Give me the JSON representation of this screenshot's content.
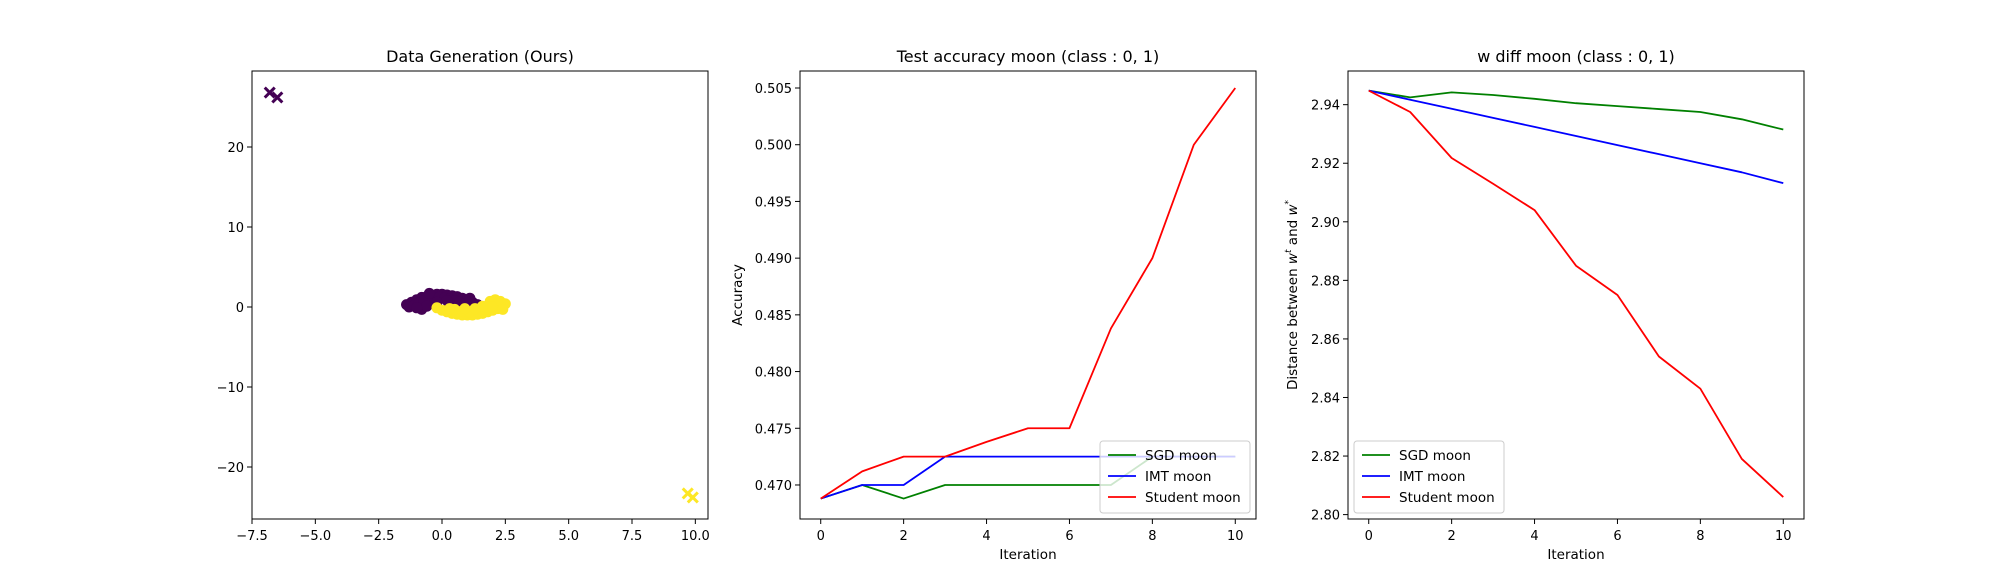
{
  "chart_data": [
    {
      "type": "scatter",
      "title": "Data Generation (Ours)",
      "xlabel": "",
      "ylabel": "",
      "xlim": [
        -7.5,
        10.5
      ],
      "ylim": [
        -26.5,
        29.5
      ],
      "xticks": [
        -7.5,
        -5.0,
        -2.5,
        0.0,
        2.5,
        5.0,
        7.5,
        10.0
      ],
      "xtick_labels": [
        "−7.5",
        "−5.0",
        "−2.5",
        "0.0",
        "2.5",
        "5.0",
        "7.5",
        "10.0"
      ],
      "yticks": [
        -20,
        -10,
        0,
        10,
        20
      ],
      "ytick_labels": [
        "−20",
        "−10",
        "0",
        "10",
        "20"
      ],
      "grid": false,
      "colors": {
        "class0": "#440154",
        "class1": "#fde725"
      },
      "series": [
        {
          "marker": "circle",
          "class": 0,
          "points": [
            [
              -1.4,
              0.3
            ],
            [
              -1.2,
              0.6
            ],
            [
              -1.0,
              0.9
            ],
            [
              -0.8,
              1.2
            ],
            [
              -0.6,
              1.3
            ],
            [
              -0.4,
              1.5
            ],
            [
              -0.2,
              1.6
            ],
            [
              0.0,
              1.6
            ],
            [
              0.2,
              1.5
            ],
            [
              0.4,
              1.4
            ],
            [
              0.6,
              1.3
            ],
            [
              0.8,
              1.1
            ],
            [
              1.0,
              0.9
            ],
            [
              1.2,
              0.6
            ],
            [
              1.4,
              0.3
            ],
            [
              -1.3,
              0.0
            ],
            [
              -1.1,
              0.2
            ],
            [
              -0.9,
              0.5
            ],
            [
              -0.7,
              0.8
            ],
            [
              -0.5,
              1.0
            ],
            [
              -0.3,
              1.1
            ],
            [
              -0.1,
              1.2
            ],
            [
              0.1,
              1.1
            ],
            [
              0.3,
              1.0
            ],
            [
              0.5,
              0.8
            ],
            [
              0.7,
              0.6
            ],
            [
              0.9,
              0.4
            ],
            [
              -0.8,
              -0.3
            ],
            [
              -0.6,
              0.1
            ],
            [
              -1.0,
              -0.1
            ],
            [
              0.2,
              0.8
            ],
            [
              -0.2,
              0.6
            ],
            [
              1.1,
              1.1
            ],
            [
              -0.5,
              1.7
            ]
          ]
        },
        {
          "marker": "circle",
          "class": 1,
          "points": [
            [
              -0.2,
              -0.1
            ],
            [
              0.0,
              -0.4
            ],
            [
              0.2,
              -0.6
            ],
            [
              0.4,
              -0.8
            ],
            [
              0.6,
              -0.9
            ],
            [
              0.8,
              -1.0
            ],
            [
              1.0,
              -1.0
            ],
            [
              1.2,
              -1.0
            ],
            [
              1.4,
              -0.9
            ],
            [
              1.6,
              -0.8
            ],
            [
              1.8,
              -0.6
            ],
            [
              2.0,
              -0.4
            ],
            [
              2.2,
              -0.2
            ],
            [
              2.4,
              0.1
            ],
            [
              2.5,
              0.4
            ],
            [
              2.3,
              0.7
            ],
            [
              2.1,
              0.9
            ],
            [
              1.9,
              0.7
            ],
            [
              2.2,
              0.4
            ],
            [
              0.5,
              -0.3
            ],
            [
              0.8,
              -0.5
            ],
            [
              1.1,
              -0.6
            ],
            [
              1.4,
              -0.5
            ],
            [
              1.7,
              -0.3
            ],
            [
              2.0,
              0.0
            ],
            [
              0.3,
              -0.2
            ],
            [
              1.6,
              0.1
            ],
            [
              2.4,
              -0.3
            ],
            [
              0.9,
              -0.2
            ],
            [
              1.3,
              -0.2
            ]
          ]
        },
        {
          "marker": "x",
          "class": 0,
          "points": [
            [
              -6.8,
              26.8
            ],
            [
              -6.5,
              26.2
            ]
          ]
        },
        {
          "marker": "x",
          "class": 1,
          "points": [
            [
              9.7,
              -23.3
            ],
            [
              9.9,
              -23.8
            ]
          ]
        }
      ]
    },
    {
      "type": "line",
      "title": "Test accuracy moon (class : 0, 1)",
      "xlabel": "Iteration",
      "ylabel": "Accuracy",
      "xlim": [
        -0.5,
        10.5
      ],
      "ylim": [
        0.467,
        0.5065
      ],
      "xticks": [
        0,
        2,
        4,
        6,
        8,
        10
      ],
      "xtick_labels": [
        "0",
        "2",
        "4",
        "6",
        "8",
        "10"
      ],
      "yticks": [
        0.47,
        0.475,
        0.48,
        0.485,
        0.49,
        0.495,
        0.5,
        0.505
      ],
      "ytick_labels": [
        "0.470",
        "0.475",
        "0.480",
        "0.485",
        "0.490",
        "0.495",
        "0.500",
        "0.505"
      ],
      "grid": false,
      "legend_position": "lower-right",
      "x": [
        0,
        1,
        2,
        3,
        4,
        5,
        6,
        7,
        8,
        9,
        10
      ],
      "series": [
        {
          "name": "SGD moon",
          "color": "#008000",
          "values": [
            0.4688,
            0.47,
            0.4688,
            0.47,
            0.47,
            0.47,
            0.47,
            0.47,
            0.4725,
            0.4725,
            0.4725
          ]
        },
        {
          "name": "IMT moon",
          "color": "#0000ff",
          "values": [
            0.4688,
            0.47,
            0.47,
            0.4725,
            0.4725,
            0.4725,
            0.4725,
            0.4725,
            0.4725,
            0.4725,
            0.4725
          ]
        },
        {
          "name": "Student moon",
          "color": "#ff0000",
          "values": [
            0.4688,
            0.4712,
            0.4725,
            0.4725,
            0.4738,
            0.475,
            0.475,
            0.4838,
            0.49,
            0.5,
            0.505
          ]
        }
      ]
    },
    {
      "type": "line",
      "title": "w diff moon (class : 0, 1)",
      "xlabel": "Iteration",
      "ylabel": "Distance between wᵗ and w*",
      "ylabel_parts": {
        "pre": "Distance between ",
        "w1": "w",
        "sup1": "t",
        "mid": " and ",
        "w2": "w",
        "sup2": "*"
      },
      "xlim": [
        -0.5,
        10.5
      ],
      "ylim": [
        2.7985,
        2.9515
      ],
      "xticks": [
        0,
        2,
        4,
        6,
        8,
        10
      ],
      "xtick_labels": [
        "0",
        "2",
        "4",
        "6",
        "8",
        "10"
      ],
      "yticks": [
        2.8,
        2.82,
        2.84,
        2.86,
        2.88,
        2.9,
        2.92,
        2.94
      ],
      "ytick_labels": [
        "2.80",
        "2.82",
        "2.84",
        "2.86",
        "2.88",
        "2.90",
        "2.92",
        "2.94"
      ],
      "grid": false,
      "legend_position": "lower-left",
      "x": [
        0,
        1,
        2,
        3,
        4,
        5,
        6,
        7,
        8,
        9,
        10
      ],
      "series": [
        {
          "name": "SGD moon",
          "color": "#008000",
          "values": [
            2.9448,
            2.9425,
            2.9442,
            2.9433,
            2.942,
            2.9405,
            2.9395,
            2.9385,
            2.9375,
            2.935,
            2.9315
          ]
        },
        {
          "name": "IMT moon",
          "color": "#0000ff",
          "values": [
            2.9448,
            2.9417,
            2.9386,
            2.9355,
            2.9324,
            2.9293,
            2.9262,
            2.9231,
            2.92,
            2.9169,
            2.9132
          ]
        },
        {
          "name": "Student moon",
          "color": "#ff0000",
          "values": [
            2.9448,
            2.9375,
            2.9218,
            2.913,
            2.904,
            2.885,
            2.875,
            2.854,
            2.843,
            2.819,
            2.806
          ]
        }
      ]
    }
  ]
}
